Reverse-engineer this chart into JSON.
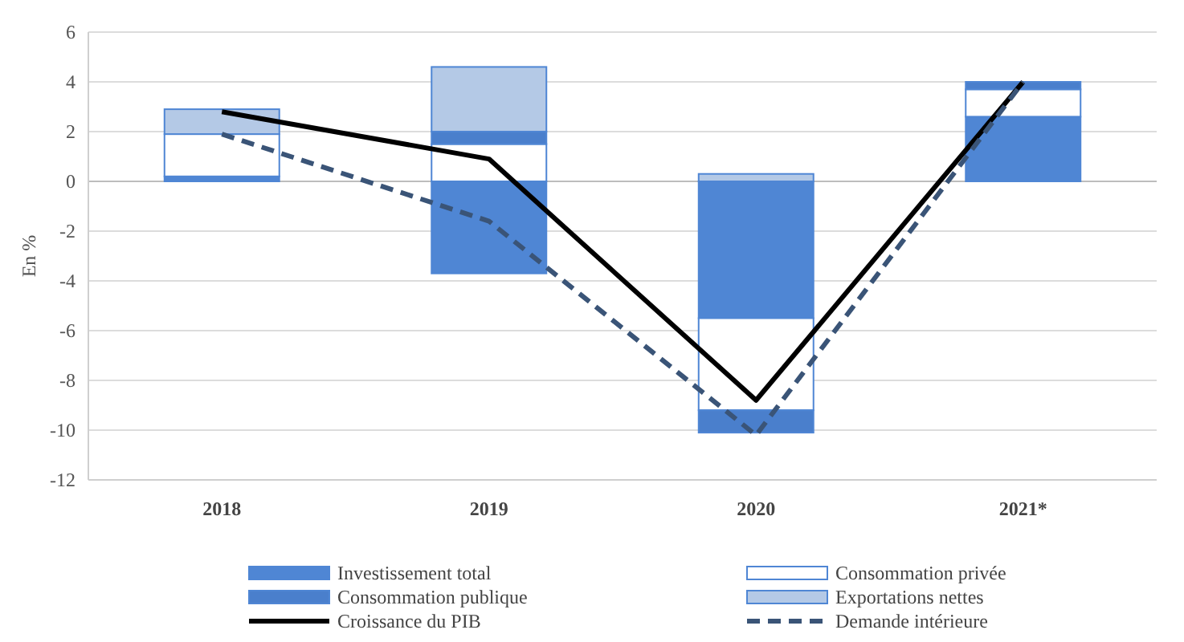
{
  "chart_data": {
    "type": "bar",
    "stacked": true,
    "ylabel": "En %",
    "categories": [
      "2018",
      "2019",
      "2020",
      "2021*"
    ],
    "series": [
      {
        "name": "Investissement total",
        "color": "#4f86d4",
        "values": [
          0.2,
          -3.7,
          -5.5,
          2.6
        ]
      },
      {
        "name": "Consommation privée",
        "color": "#ffffff",
        "values": [
          1.7,
          1.5,
          -3.7,
          1.1
        ]
      },
      {
        "name": "Consommation publique",
        "color": "#4a7fcc",
        "values": [
          0,
          0.5,
          -0.9,
          0.3
        ]
      },
      {
        "name": "Exportations nettes",
        "color": "#b4c9e6",
        "values": [
          1.0,
          2.6,
          0.3,
          0
        ]
      },
      {
        "name": "Croissance du PIB",
        "type": "line",
        "color": "#000000",
        "line_style": "solid",
        "values": [
          2.8,
          0.9,
          -8.8,
          4.0
        ]
      },
      {
        "name": "Demande intérieure",
        "type": "line",
        "color": "#3a5477",
        "line_style": "dashed",
        "values": [
          1.9,
          -1.6,
          -10.2,
          4.0
        ]
      }
    ],
    "ylim": [
      -12,
      6
    ],
    "yticks": [
      -12,
      -10,
      -8,
      -6,
      -4,
      -2,
      0,
      2,
      4,
      6
    ],
    "grid": "y",
    "legend": "bottom"
  }
}
